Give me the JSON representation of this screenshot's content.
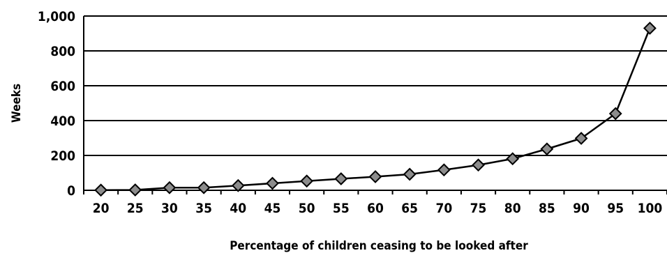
{
  "chart_data": {
    "type": "line",
    "title": "",
    "xlabel": "Percentage of children ceasing to be looked after",
    "ylabel": "Weeks",
    "x": [
      20,
      25,
      30,
      35,
      40,
      45,
      50,
      55,
      60,
      65,
      70,
      75,
      80,
      85,
      90,
      95,
      100
    ],
    "x_tick_labels": [
      "20",
      "25",
      "30",
      "35",
      "40",
      "45",
      "50",
      "55",
      "60",
      "65",
      "70",
      "75",
      "80",
      "85",
      "90",
      "95",
      "100"
    ],
    "series": [
      {
        "values": [
          1,
          2,
          15,
          15,
          27,
          40,
          53,
          66,
          78,
          92,
          117,
          145,
          181,
          237,
          298,
          440,
          930
        ]
      }
    ],
    "ylim": [
      0,
      1000
    ],
    "y_ticks": [
      0,
      200,
      400,
      600,
      800,
      1000
    ],
    "y_tick_labels": [
      "0",
      "200",
      "400",
      "600",
      "800",
      "1,000"
    ],
    "grid": "horizontal",
    "legend": "none",
    "marker": "diamond",
    "colors": {
      "line": "#000000",
      "marker_fill": "#8c8c8c",
      "marker_stroke": "#000000",
      "grid": "#000000"
    }
  }
}
